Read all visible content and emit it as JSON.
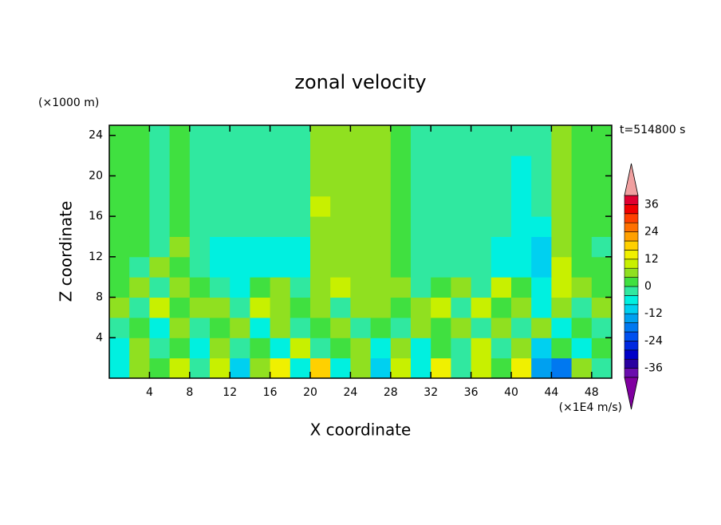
{
  "chart_data": {
    "type": "heatmap",
    "title": "zonal velocity",
    "x_label": "X coordinate",
    "y_label": "Z coordinate",
    "y_unit": "(×1000 m)",
    "value_unit": "(×1E4 m/s)",
    "time_label": "t=514800 s",
    "x": [
      1,
      3,
      5,
      7,
      9,
      11,
      13,
      15,
      17,
      19,
      21,
      23,
      25,
      27,
      29,
      31,
      33,
      35,
      37,
      39,
      41,
      43,
      45,
      47,
      49
    ],
    "y": [
      1,
      3,
      5,
      7,
      9,
      11,
      13,
      15,
      17,
      19,
      21,
      23
    ],
    "z": [
      [
        -8,
        6,
        2,
        10,
        -4,
        8,
        -10,
        4,
        12,
        -6,
        16,
        -8,
        4,
        -12,
        10,
        -6,
        14,
        -4,
        8,
        2,
        12,
        -16,
        -20,
        6,
        -4
      ],
      [
        -6,
        4,
        -2,
        2,
        -8,
        4,
        -4,
        2,
        -6,
        8,
        -4,
        2,
        6,
        -8,
        4,
        -6,
        2,
        -4,
        8,
        -2,
        4,
        -10,
        2,
        -6,
        2
      ],
      [
        -4,
        2,
        -6,
        6,
        -4,
        2,
        4,
        -6,
        4,
        -2,
        2,
        6,
        -4,
        2,
        -2,
        6,
        2,
        4,
        -2,
        6,
        -2,
        4,
        -6,
        2,
        -4
      ],
      [
        4,
        -4,
        8,
        2,
        4,
        6,
        -4,
        8,
        6,
        2,
        4,
        -2,
        4,
        6,
        2,
        4,
        8,
        -4,
        10,
        2,
        4,
        -8,
        6,
        -2,
        4
      ],
      [
        2,
        4,
        -2,
        6,
        2,
        -4,
        -6,
        2,
        4,
        -4,
        6,
        8,
        6,
        4,
        4,
        -2,
        2,
        6,
        -2,
        8,
        2,
        -6,
        10,
        4,
        2
      ],
      [
        2,
        -2,
        4,
        2,
        -3,
        -6,
        -7,
        -8,
        -7,
        -6,
        6,
        7,
        6,
        5,
        2,
        -3,
        -4,
        -3,
        -4,
        -5,
        -8,
        -12,
        8,
        2,
        2
      ],
      [
        2,
        2,
        -2,
        4,
        -3,
        -5,
        -6,
        -7,
        -6,
        -5,
        6,
        6,
        6,
        5,
        2,
        -3,
        -3,
        -3,
        -4,
        -5,
        -6,
        -10,
        7,
        2,
        -2
      ],
      [
        2,
        3,
        -2,
        2,
        -2,
        -3,
        -4,
        -4,
        -3,
        -3,
        7,
        6,
        5,
        5,
        2,
        -3,
        -3,
        -3,
        -3,
        -4,
        -5,
        -5,
        6,
        2,
        2
      ],
      [
        2,
        3,
        -2,
        2,
        -2,
        -3,
        -3,
        -3,
        -2,
        -2,
        8,
        6,
        5,
        5,
        2,
        -3,
        -3,
        -3,
        -3,
        -3,
        -5,
        -4,
        6,
        2,
        3
      ],
      [
        2,
        3,
        -2,
        2,
        -2,
        -3,
        -3,
        -3,
        -2,
        -2,
        6,
        6,
        5,
        5,
        2,
        -3,
        -3,
        -3,
        -3,
        -3,
        -5,
        -4,
        6,
        2,
        2
      ],
      [
        3,
        3,
        -2,
        2,
        -2,
        -3,
        -3,
        -3,
        -2,
        -2,
        6,
        5,
        5,
        5,
        2,
        -3,
        -3,
        -3,
        -3,
        -3,
        -5,
        -4,
        6,
        2,
        2
      ],
      [
        2,
        3,
        -2,
        3,
        -2,
        -3,
        -3,
        -2,
        -2,
        -2,
        6,
        5,
        5,
        5,
        3,
        -3,
        -3,
        -3,
        -3,
        -3,
        -4,
        -4,
        6,
        3,
        2
      ]
    ],
    "xlim": [
      0,
      50
    ],
    "xticks": [
      4,
      8,
      12,
      16,
      20,
      24,
      28,
      32,
      36,
      40,
      44,
      48
    ],
    "ylim": [
      0,
      25
    ],
    "yticks": [
      4,
      8,
      12,
      16,
      20,
      24
    ],
    "levels": [
      -40,
      -36,
      -32,
      -28,
      -24,
      -20,
      -16,
      -12,
      -8,
      -4,
      0,
      4,
      8,
      12,
      16,
      20,
      24,
      28,
      32,
      36,
      40
    ],
    "colors": [
      "#6a0dad",
      "#2a00a0",
      "#0000c8",
      "#0028e0",
      "#0050f0",
      "#0078f0",
      "#00a0f0",
      "#00d0f0",
      "#00f0e0",
      "#30e8a0",
      "#40e040",
      "#90e020",
      "#c8f000",
      "#f0f000",
      "#ffd000",
      "#ffa000",
      "#ff7000",
      "#ff4000",
      "#f00000",
      "#e00030"
    ],
    "under_color": "#8000a0",
    "over_color": "#f0a0a0",
    "colorbar_ticks": [
      -36,
      -24,
      -12,
      0,
      12,
      24,
      36
    ]
  }
}
